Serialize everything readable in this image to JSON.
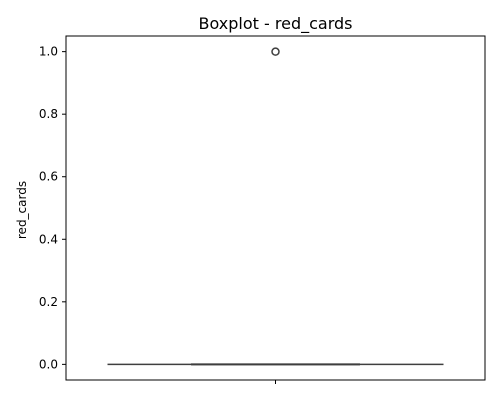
{
  "chart_data": {
    "type": "boxplot",
    "title": "Boxplot - red_cards",
    "xlabel": "",
    "ylabel": "red_cards",
    "ylim": [
      -0.05,
      1.05
    ],
    "y_ticks": [
      0.0,
      0.2,
      0.4,
      0.6,
      0.8,
      1.0
    ],
    "y_tick_labels": [
      "0.0",
      "0.2",
      "0.4",
      "0.6",
      "0.8",
      "1.0"
    ],
    "x_ticks": [
      ""
    ],
    "grid": false,
    "box": {
      "min": 0.0,
      "q1": 0.0,
      "median": 0.0,
      "q3": 0.0,
      "max": 0.0
    },
    "outliers": [
      1.0
    ],
    "colors": {
      "box_edge": "#3f3f3f",
      "whisker": "#3f3f3f",
      "outlier_edge": "#3f3f3f",
      "axes": "#000000",
      "background": "#ffffff"
    }
  }
}
